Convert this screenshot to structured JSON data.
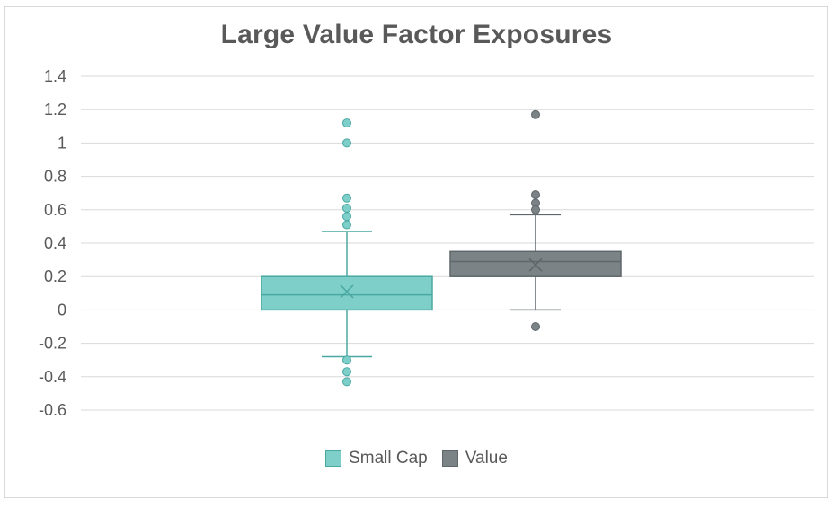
{
  "chart_data": {
    "type": "box",
    "title": "Large Value Factor Exposures",
    "xlabel": "",
    "ylabel": "",
    "ylim": [
      -0.6,
      1.4
    ],
    "yticks": [
      1.4,
      1.2,
      1,
      0.8,
      0.6,
      0.4,
      0.2,
      0,
      -0.2,
      -0.4,
      -0.6
    ],
    "grid": true,
    "legend_position": "bottom",
    "series": [
      {
        "name": "Small Cap",
        "color": "#7ecfc9",
        "stroke": "#4aa8a2",
        "q1": 0.0,
        "median": 0.09,
        "q3": 0.2,
        "mean": 0.11,
        "whisker_low": -0.28,
        "whisker_high": 0.47,
        "outliers": [
          1.12,
          1.0,
          0.67,
          0.61,
          0.56,
          0.51,
          -0.3,
          -0.37,
          -0.43
        ]
      },
      {
        "name": "Value",
        "color": "#7b8387",
        "stroke": "#5f676b",
        "q1": 0.2,
        "median": 0.29,
        "q3": 0.35,
        "mean": 0.27,
        "whisker_low": 0.0,
        "whisker_high": 0.57,
        "outliers": [
          1.17,
          0.69,
          0.64,
          0.6,
          -0.1
        ]
      }
    ]
  }
}
